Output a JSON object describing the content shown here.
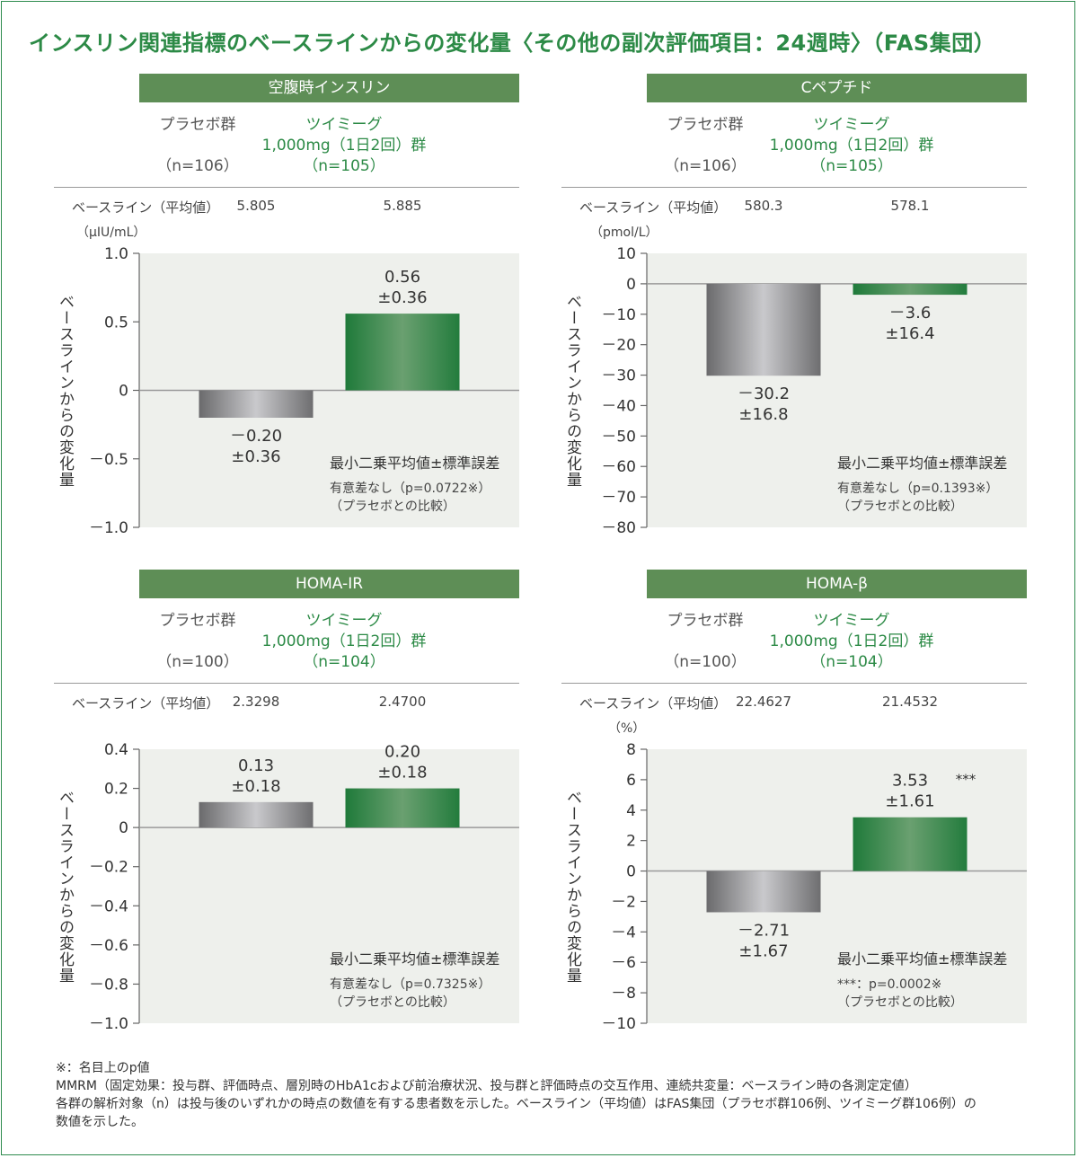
{
  "title": "インスリン関連指標のベースラインからの変化量〈その他の副次評価項目：24週時〉（FAS集団）",
  "y_axis_label": "ベースラインからの変化量",
  "baseline_label": "ベースライン（平均値）",
  "note_main": "最小二乗平均値±標準誤差",
  "compare_note": "（プラセボとの比較）",
  "colors": {
    "green": "#2c8a46",
    "header": "#5e8e56",
    "plot_bg": "#eef0ec"
  },
  "footer": {
    "line1": "※：名目上のp値",
    "line2": "MMRM（固定効果：投与群、評価時点、層別時のHbA1cおよび前治療状況、投与群と評価時点の交互作用、連続共変量：ベースライン時の各測定定値）",
    "line3": "各群の解析対象（n）は投与後のいずれかの時点の数値を有する患者数を示した。ベースライン（平均値）はFAS集団（プラセボ群106例、ツイミーグ群106例）の",
    "line4": "数値を示した。"
  },
  "panels": [
    {
      "header": "空腹時インスリン",
      "placebo": {
        "name": "プラセボ群",
        "n": "（n=106）"
      },
      "drug": {
        "name": "ツイミーグ",
        "dose": "1,000mg（1日2回）群",
        "n": "（n=105）"
      },
      "baseline_placebo": "5.805",
      "baseline_drug": "5.885",
      "unit": "（μIU/mL）",
      "sig": "有意差なし（p=0.0722※）"
    },
    {
      "header": "Cペプチド",
      "placebo": {
        "name": "プラセボ群",
        "n": "（n=106）"
      },
      "drug": {
        "name": "ツイミーグ",
        "dose": "1,000mg（1日2回）群",
        "n": "（n=105）"
      },
      "baseline_placebo": "580.3",
      "baseline_drug": "578.1",
      "unit": "（pmol/L）",
      "sig": "有意差なし（p=0.1393※）"
    },
    {
      "header": "HOMA-IR",
      "placebo": {
        "name": "プラセボ群",
        "n": "（n=100）"
      },
      "drug": {
        "name": "ツイミーグ",
        "dose": "1,000mg（1日2回）群",
        "n": "（n=104）"
      },
      "baseline_placebo": "2.3298",
      "baseline_drug": "2.4700",
      "unit": "",
      "sig": "有意差なし（p=0.7325※）"
    },
    {
      "header": "HOMA-β",
      "placebo": {
        "name": "プラセボ群",
        "n": "（n=100）"
      },
      "drug": {
        "name": "ツイミーグ",
        "dose": "1,000mg（1日2回）群",
        "n": "（n=104）"
      },
      "baseline_placebo": "22.4627",
      "baseline_drug": "21.4532",
      "unit": "（%）",
      "sig": "***：p=0.0002※"
    }
  ],
  "chart_data": [
    {
      "type": "bar",
      "title": "空腹時インスリン",
      "ylabel": "ベースラインからの変化量",
      "ylim": [
        -1.0,
        1.0
      ],
      "ticks": [
        1.0,
        0.5,
        0,
        -0.5,
        -1.0
      ],
      "tick_labels": [
        "1.0",
        "0.5",
        "0",
        "－0.5",
        "－1.0"
      ],
      "categories": [
        "プラセボ群",
        "ツイミーグ 1,000mg（1日2回）群"
      ],
      "values": [
        -0.2,
        0.56
      ],
      "value_labels": [
        "－0.20",
        "0.56"
      ],
      "error_labels": [
        "±0.36",
        "±0.36"
      ],
      "sig_marks": [
        "",
        ""
      ]
    },
    {
      "type": "bar",
      "title": "Cペプチド",
      "ylabel": "ベースラインからの変化量",
      "ylim": [
        -80,
        10
      ],
      "ticks": [
        10,
        0,
        -10,
        -20,
        -30,
        -40,
        -50,
        -60,
        -70,
        -80
      ],
      "tick_labels": [
        "10",
        "0",
        "－10",
        "－20",
        "－30",
        "－40",
        "－50",
        "－60",
        "－70",
        "－80"
      ],
      "categories": [
        "プラセボ群",
        "ツイミーグ 1,000mg（1日2回）群"
      ],
      "values": [
        -30.2,
        -3.6
      ],
      "value_labels": [
        "－30.2",
        "－3.6"
      ],
      "error_labels": [
        "±16.8",
        "±16.4"
      ],
      "sig_marks": [
        "",
        ""
      ]
    },
    {
      "type": "bar",
      "title": "HOMA-IR",
      "ylabel": "ベースラインからの変化量",
      "ylim": [
        -1.0,
        0.4
      ],
      "ticks": [
        0.4,
        0.2,
        0,
        -0.2,
        -0.4,
        -0.6,
        -0.8,
        -1.0
      ],
      "tick_labels": [
        "0.4",
        "0.2",
        "0",
        "－0.2",
        "－0.4",
        "－0.6",
        "－0.8",
        "－1.0"
      ],
      "categories": [
        "プラセボ群",
        "ツイミーグ 1,000mg（1日2回）群"
      ],
      "values": [
        0.13,
        0.2
      ],
      "value_labels": [
        "0.13",
        "0.20"
      ],
      "error_labels": [
        "±0.18",
        "±0.18"
      ],
      "sig_marks": [
        "",
        ""
      ]
    },
    {
      "type": "bar",
      "title": "HOMA-β",
      "ylabel": "ベースラインからの変化量",
      "ylim": [
        -10,
        8
      ],
      "ticks": [
        8,
        6,
        4,
        2,
        0,
        -2,
        -4,
        -6,
        -8,
        -10
      ],
      "tick_labels": [
        "8",
        "6",
        "4",
        "2",
        "0",
        "－2",
        "－4",
        "－6",
        "－8",
        "－10"
      ],
      "categories": [
        "プラセボ群",
        "ツイミーグ 1,000mg（1日2回）群"
      ],
      "values": [
        -2.71,
        3.53
      ],
      "value_labels": [
        "－2.71",
        "3.53"
      ],
      "error_labels": [
        "±1.67",
        "±1.61"
      ],
      "sig_marks": [
        "",
        "***"
      ]
    }
  ]
}
